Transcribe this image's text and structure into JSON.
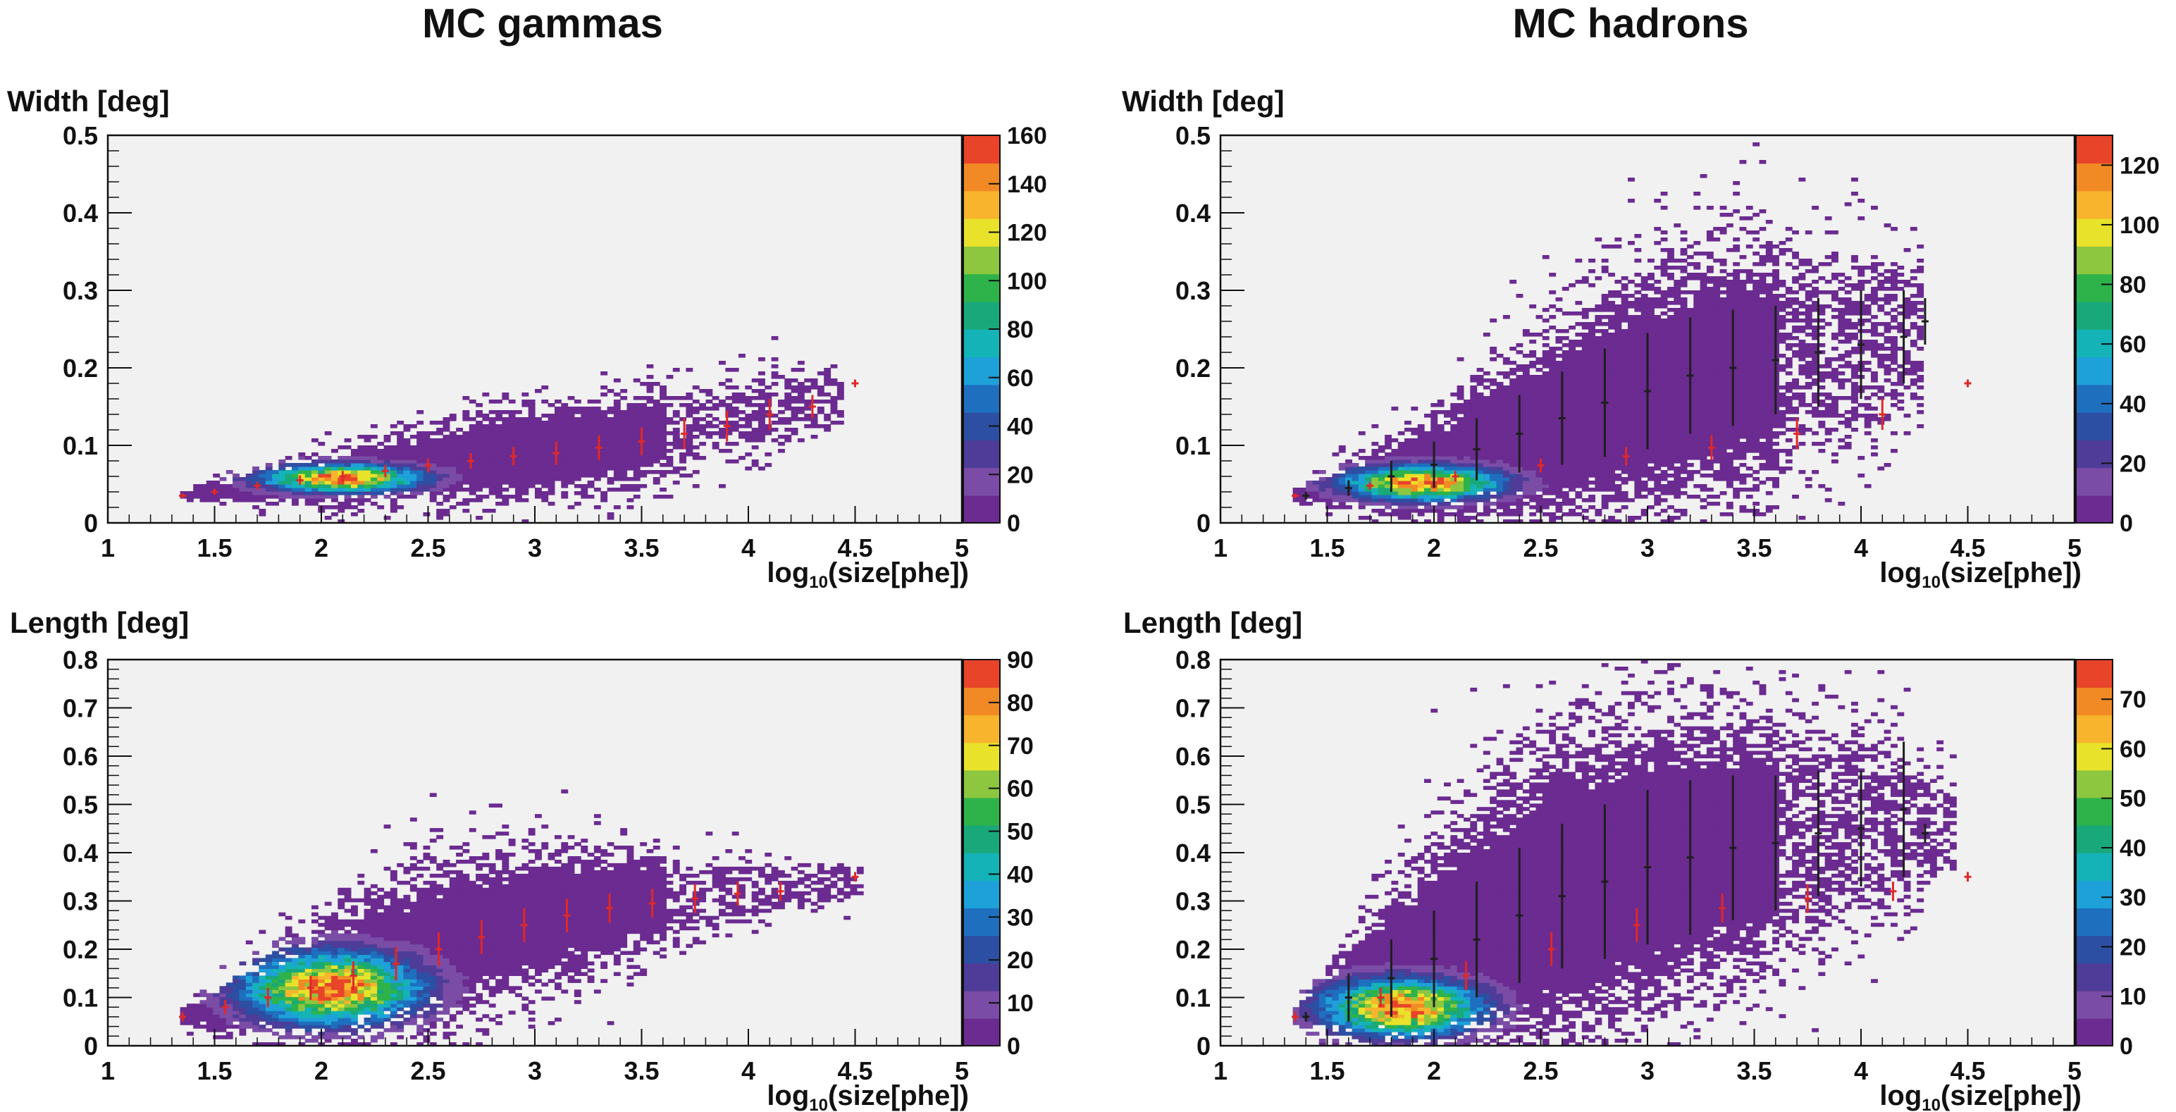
{
  "titles": {
    "gammas": "MC gammas",
    "hadrons": "MC hadrons"
  },
  "colors": {
    "frame_bg": "#f1f1f1",
    "axis": "#111111",
    "gamma_profile": "#e02828",
    "hadron_profile": "#1e1e1e",
    "palette": [
      "#6b2b90",
      "#7a4ca6",
      "#4e3c98",
      "#2d4fa3",
      "#1f6fbf",
      "#1ea0d8",
      "#14b3b8",
      "#19a87a",
      "#2eb34a",
      "#8dc63f",
      "#e8e22a",
      "#f7b42c",
      "#f18a24",
      "#e8442a"
    ]
  },
  "chart_data": [
    {
      "id": "gammas-width",
      "type": "heatmap",
      "title": "MC gammas",
      "ylabel": "Width [deg]",
      "xlabel": "log10(size[phe])",
      "xlabel_main": "log",
      "xlabel_sub": "10",
      "xlabel_rest": "(size[phe])",
      "xlim": [
        1,
        5
      ],
      "ylim": [
        0,
        0.5
      ],
      "xticks": [
        "1",
        "1.5",
        "2",
        "2.5",
        "3",
        "3.5",
        "4",
        "4.5",
        "5"
      ],
      "yticks": [
        "0",
        "0.1",
        "0.2",
        "0.3",
        "0.4",
        "0.5"
      ],
      "zlim": [
        0,
        160
      ],
      "zticks": [
        "0",
        "20",
        "40",
        "60",
        "80",
        "100",
        "120",
        "140",
        "160"
      ],
      "population": {
        "mean_line": [
          [
            1.35,
            0.035
          ],
          [
            2.0,
            0.055
          ],
          [
            2.5,
            0.075
          ],
          [
            3.0,
            0.09
          ],
          [
            3.5,
            0.11
          ],
          [
            4.0,
            0.14
          ],
          [
            4.5,
            0.16
          ]
        ],
        "spread": [
          [
            1.35,
            0.005
          ],
          [
            2.0,
            0.02
          ],
          [
            2.5,
            0.03
          ],
          [
            3.0,
            0.035
          ],
          [
            3.5,
            0.035
          ],
          [
            4.0,
            0.03
          ],
          [
            4.5,
            0.02
          ]
        ],
        "peak": [
          2.1,
          0.058
        ],
        "peak_sigma": [
          0.25,
          0.012
        ],
        "xmax": 4.45
      },
      "profile": {
        "name": "gamma profile",
        "points": [
          [
            1.35,
            0.035,
            0.003
          ],
          [
            1.5,
            0.04,
            0.004
          ],
          [
            1.7,
            0.048,
            0.005
          ],
          [
            1.9,
            0.055,
            0.006
          ],
          [
            2.1,
            0.06,
            0.007
          ],
          [
            2.3,
            0.067,
            0.008
          ],
          [
            2.5,
            0.074,
            0.009
          ],
          [
            2.7,
            0.08,
            0.01
          ],
          [
            2.9,
            0.086,
            0.012
          ],
          [
            3.1,
            0.09,
            0.015
          ],
          [
            3.3,
            0.097,
            0.016
          ],
          [
            3.5,
            0.105,
            0.018
          ],
          [
            3.7,
            0.115,
            0.02
          ],
          [
            3.9,
            0.125,
            0.02
          ],
          [
            4.1,
            0.14,
            0.02
          ],
          [
            4.3,
            0.15,
            0.015
          ],
          [
            4.5,
            0.18,
            0.005
          ]
        ]
      }
    },
    {
      "id": "hadrons-width",
      "type": "heatmap",
      "title": "MC hadrons",
      "ylabel": "Width [deg]",
      "xlabel": "log10(size[phe])",
      "xlabel_main": "log",
      "xlabel_sub": "10",
      "xlabel_rest": "(size[phe])",
      "xlim": [
        1,
        5
      ],
      "ylim": [
        0,
        0.5
      ],
      "xticks": [
        "1",
        "1.5",
        "2",
        "2.5",
        "3",
        "3.5",
        "4",
        "4.5",
        "5"
      ],
      "yticks": [
        "0",
        "0.1",
        "0.2",
        "0.3",
        "0.4",
        "0.5"
      ],
      "zlim": [
        0,
        130
      ],
      "zticks": [
        "0",
        "20",
        "40",
        "60",
        "80",
        "100",
        "120"
      ],
      "population": {
        "mean_line": [
          [
            1.35,
            0.035
          ],
          [
            2.0,
            0.07
          ],
          [
            2.5,
            0.12
          ],
          [
            3.0,
            0.17
          ],
          [
            3.5,
            0.2
          ],
          [
            4.0,
            0.23
          ],
          [
            4.3,
            0.24
          ]
        ],
        "spread": [
          [
            1.35,
            0.005
          ],
          [
            2.0,
            0.04
          ],
          [
            2.5,
            0.07
          ],
          [
            3.0,
            0.09
          ],
          [
            3.5,
            0.09
          ],
          [
            4.0,
            0.07
          ],
          [
            4.3,
            0.05
          ]
        ],
        "peak": [
          1.95,
          0.052
        ],
        "peak_sigma": [
          0.25,
          0.015
        ],
        "xmax": 4.3
      },
      "profile": {
        "name": "hadron profile",
        "points": [
          [
            1.4,
            0.035,
            0.005
          ],
          [
            1.6,
            0.045,
            0.01
          ],
          [
            1.8,
            0.06,
            0.02
          ],
          [
            2.0,
            0.075,
            0.03
          ],
          [
            2.2,
            0.095,
            0.04
          ],
          [
            2.4,
            0.115,
            0.05
          ],
          [
            2.6,
            0.135,
            0.06
          ],
          [
            2.8,
            0.155,
            0.07
          ],
          [
            3.0,
            0.17,
            0.075
          ],
          [
            3.2,
            0.19,
            0.075
          ],
          [
            3.4,
            0.2,
            0.075
          ],
          [
            3.6,
            0.21,
            0.07
          ],
          [
            3.8,
            0.22,
            0.07
          ],
          [
            4.0,
            0.23,
            0.07
          ],
          [
            4.2,
            0.24,
            0.06
          ],
          [
            4.3,
            0.26,
            0.03
          ]
        ]
      },
      "reference_profile": {
        "name": "gamma profile overlay",
        "points": [
          [
            1.35,
            0.035,
            0.003
          ],
          [
            1.7,
            0.048,
            0.005
          ],
          [
            2.1,
            0.06,
            0.007
          ],
          [
            2.5,
            0.074,
            0.009
          ],
          [
            2.9,
            0.086,
            0.012
          ],
          [
            3.3,
            0.097,
            0.016
          ],
          [
            3.7,
            0.115,
            0.02
          ],
          [
            4.1,
            0.14,
            0.02
          ],
          [
            4.5,
            0.18,
            0.005
          ]
        ]
      }
    },
    {
      "id": "gammas-length",
      "type": "heatmap",
      "title": "MC gammas",
      "ylabel": "Length [deg]",
      "xlabel": "log10(size[phe])",
      "xlabel_main": "log",
      "xlabel_sub": "10",
      "xlabel_rest": "(size[phe])",
      "xlim": [
        1,
        5
      ],
      "ylim": [
        0,
        0.8
      ],
      "xticks": [
        "1",
        "1.5",
        "2",
        "2.5",
        "3",
        "3.5",
        "4",
        "4.5",
        "5"
      ],
      "yticks": [
        "0",
        "0.1",
        "0.2",
        "0.3",
        "0.4",
        "0.5",
        "0.6",
        "0.7",
        "0.8"
      ],
      "zlim": [
        0,
        90
      ],
      "zticks": [
        "0",
        "10",
        "20",
        "30",
        "40",
        "50",
        "60",
        "70",
        "80",
        "90"
      ],
      "population": {
        "mean_line": [
          [
            1.35,
            0.06
          ],
          [
            2.0,
            0.13
          ],
          [
            2.5,
            0.2
          ],
          [
            3.0,
            0.26
          ],
          [
            3.5,
            0.3
          ],
          [
            4.0,
            0.32
          ],
          [
            4.5,
            0.34
          ]
        ],
        "spread": [
          [
            1.35,
            0.01
          ],
          [
            2.0,
            0.08
          ],
          [
            2.5,
            0.1
          ],
          [
            3.0,
            0.08
          ],
          [
            3.5,
            0.06
          ],
          [
            4.0,
            0.04
          ],
          [
            4.5,
            0.02
          ]
        ],
        "peak": [
          2.05,
          0.12
        ],
        "peak_sigma": [
          0.28,
          0.05
        ],
        "xmax": 4.55
      },
      "profile": {
        "name": "gamma profile",
        "points": [
          [
            1.35,
            0.06,
            0.01
          ],
          [
            1.55,
            0.08,
            0.015
          ],
          [
            1.75,
            0.1,
            0.02
          ],
          [
            1.95,
            0.12,
            0.025
          ],
          [
            2.15,
            0.145,
            0.03
          ],
          [
            2.35,
            0.17,
            0.035
          ],
          [
            2.55,
            0.2,
            0.035
          ],
          [
            2.75,
            0.225,
            0.035
          ],
          [
            2.95,
            0.25,
            0.035
          ],
          [
            3.15,
            0.27,
            0.035
          ],
          [
            3.35,
            0.285,
            0.03
          ],
          [
            3.55,
            0.295,
            0.03
          ],
          [
            3.75,
            0.305,
            0.03
          ],
          [
            3.95,
            0.315,
            0.025
          ],
          [
            4.15,
            0.32,
            0.02
          ],
          [
            4.5,
            0.35,
            0.01
          ]
        ]
      }
    },
    {
      "id": "hadrons-length",
      "type": "heatmap",
      "title": "MC hadrons",
      "ylabel": "Length [deg]",
      "xlabel": "log10(size[phe])",
      "xlabel_main": "log",
      "xlabel_sub": "10",
      "xlabel_rest": "(size[phe])",
      "xlim": [
        1,
        5
      ],
      "ylim": [
        0,
        0.8
      ],
      "xticks": [
        "1",
        "1.5",
        "2",
        "2.5",
        "3",
        "3.5",
        "4",
        "4.5",
        "5"
      ],
      "yticks": [
        "0",
        "0.1",
        "0.2",
        "0.3",
        "0.4",
        "0.5",
        "0.6",
        "0.7",
        "0.8"
      ],
      "zlim": [
        0,
        78
      ],
      "zticks": [
        "0",
        "10",
        "20",
        "30",
        "40",
        "50",
        "60",
        "70"
      ],
      "population": {
        "mean_line": [
          [
            1.35,
            0.06
          ],
          [
            2.0,
            0.18
          ],
          [
            2.5,
            0.3
          ],
          [
            3.0,
            0.38
          ],
          [
            3.5,
            0.42
          ],
          [
            4.0,
            0.45
          ],
          [
            4.4,
            0.46
          ]
        ],
        "spread": [
          [
            1.35,
            0.01
          ],
          [
            2.0,
            0.14
          ],
          [
            2.5,
            0.18
          ],
          [
            3.0,
            0.18
          ],
          [
            3.5,
            0.15
          ],
          [
            4.0,
            0.12
          ],
          [
            4.4,
            0.06
          ]
        ],
        "peak": [
          1.85,
          0.08
        ],
        "peak_sigma": [
          0.25,
          0.04
        ],
        "xmax": 4.45
      },
      "profile": {
        "name": "hadron profile",
        "points": [
          [
            1.4,
            0.06,
            0.01
          ],
          [
            1.6,
            0.1,
            0.05
          ],
          [
            1.8,
            0.14,
            0.08
          ],
          [
            2.0,
            0.18,
            0.1
          ],
          [
            2.2,
            0.22,
            0.12
          ],
          [
            2.4,
            0.27,
            0.14
          ],
          [
            2.6,
            0.31,
            0.15
          ],
          [
            2.8,
            0.34,
            0.16
          ],
          [
            3.0,
            0.37,
            0.16
          ],
          [
            3.2,
            0.39,
            0.16
          ],
          [
            3.4,
            0.41,
            0.15
          ],
          [
            3.6,
            0.42,
            0.14
          ],
          [
            3.8,
            0.44,
            0.13
          ],
          [
            4.0,
            0.45,
            0.12
          ],
          [
            4.2,
            0.49,
            0.14
          ],
          [
            4.3,
            0.44,
            0.02
          ]
        ]
      },
      "reference_profile": {
        "name": "gamma profile overlay",
        "points": [
          [
            1.35,
            0.06,
            0.01
          ],
          [
            1.75,
            0.1,
            0.02
          ],
          [
            2.15,
            0.145,
            0.03
          ],
          [
            2.55,
            0.2,
            0.035
          ],
          [
            2.95,
            0.25,
            0.035
          ],
          [
            3.35,
            0.285,
            0.03
          ],
          [
            3.75,
            0.305,
            0.03
          ],
          [
            4.15,
            0.32,
            0.02
          ],
          [
            4.5,
            0.35,
            0.01
          ]
        ]
      }
    }
  ]
}
